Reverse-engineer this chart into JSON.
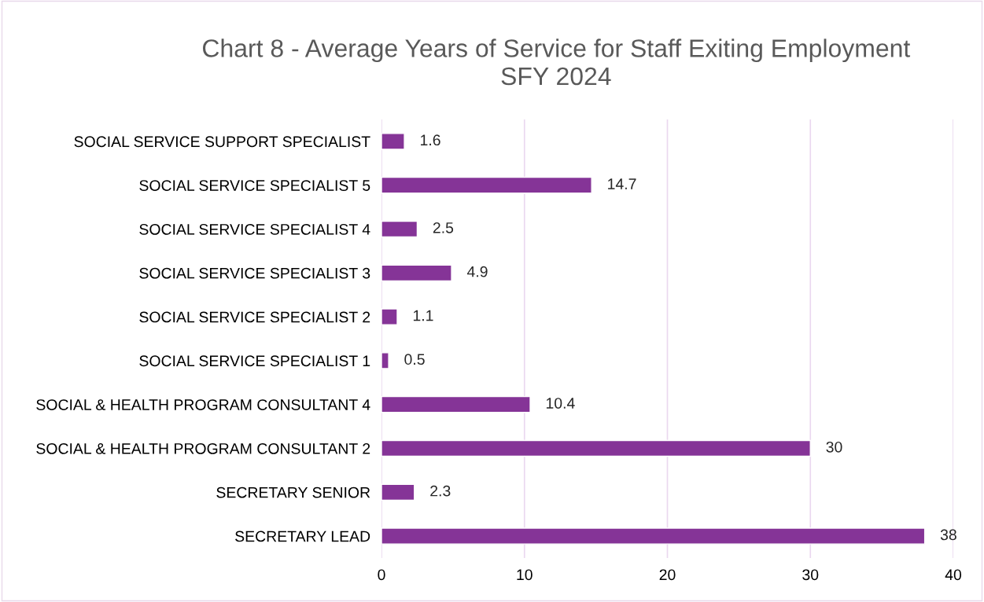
{
  "chart_data": {
    "type": "bar",
    "orientation": "horizontal",
    "title": "Chart 8 - Average Years of Service for Staff Exiting Employment\nSFY 2024",
    "categories": [
      "SOCIAL SERVICE SUPPORT SPECIALIST",
      "SOCIAL SERVICE SPECIALIST 5",
      "SOCIAL SERVICE SPECIALIST 4",
      "SOCIAL SERVICE SPECIALIST 3",
      "SOCIAL SERVICE SPECIALIST 2",
      "SOCIAL SERVICE SPECIALIST 1",
      "SOCIAL & HEALTH PROGRAM CONSULTANT 4",
      "SOCIAL & HEALTH PROGRAM CONSULTANT 2",
      "SECRETARY SENIOR",
      "SECRETARY LEAD"
    ],
    "values": [
      1.6,
      14.7,
      2.5,
      4.9,
      1.1,
      0.5,
      10.4,
      30,
      2.3,
      38
    ],
    "color": "#853497",
    "xlim": [
      0,
      40
    ],
    "xticks": [
      0,
      10,
      20,
      30,
      40
    ],
    "grid": "x",
    "data_labels": true,
    "legend": false
  }
}
